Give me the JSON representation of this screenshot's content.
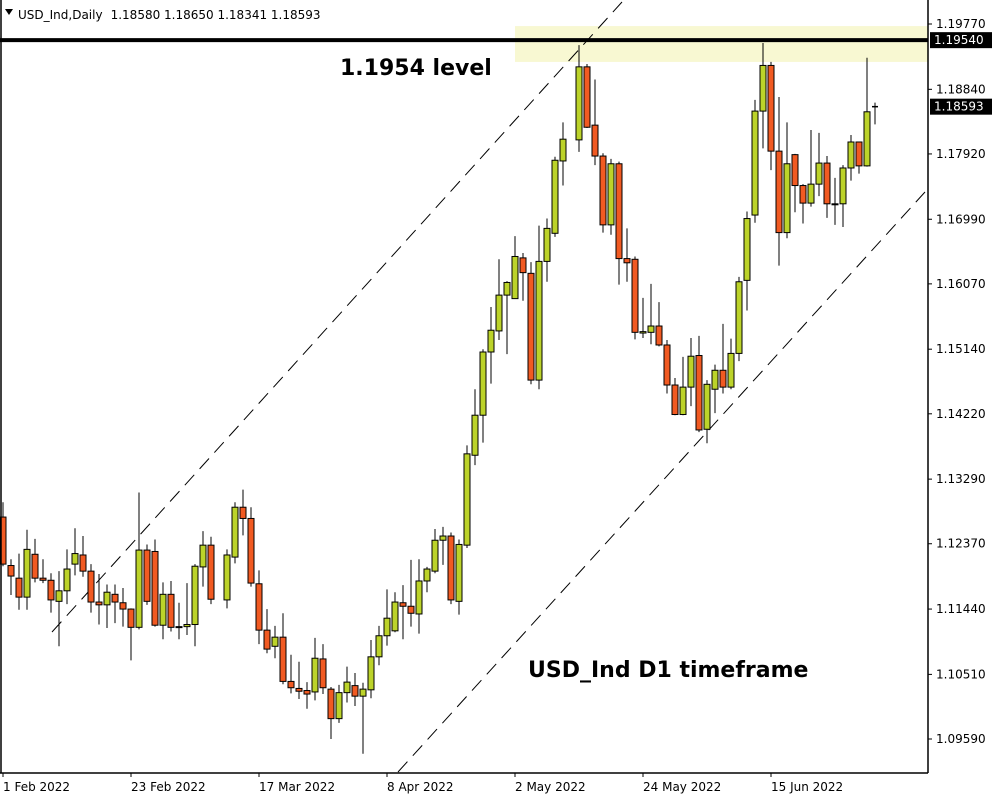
{
  "header": {
    "symbol_timeframe": "USD_Ind,Daily",
    "ohlc": "1.18580 1.18650 1.18341 1.18593",
    "icon": "triangle-down-icon"
  },
  "colors": {
    "bull": "#bcd32a",
    "bear": "#f15a22",
    "zone": "#f8f8d2",
    "background": "#ffffff"
  },
  "chart_data": {
    "type": "candlestick",
    "title": "USD_Ind,Daily",
    "ylim": [
      1.0959,
      1.1977
    ],
    "y_ticks": [
      "1.19770",
      "1.18840",
      "1.17920",
      "1.16990",
      "1.16070",
      "1.15140",
      "1.14220",
      "1.13290",
      "1.12370",
      "1.11440",
      "1.10510",
      "1.09590"
    ],
    "x_ticks": [
      "1 Feb 2022",
      "23 Feb 2022",
      "17 Mar 2022",
      "8 Apr 2022",
      "2 May 2022",
      "24 May 2022",
      "15 Jun 2022"
    ],
    "price_labels": {
      "level": "1.19540",
      "current": "1.18593"
    },
    "level_value": 1.1954,
    "zone": [
      1.1923,
      1.1974
    ],
    "annotations": {
      "level_text": "1.1954 level",
      "timeframe_text": "USD_Ind D1 timeframe"
    },
    "channel": "ascending dashed channel",
    "ohlc": [
      [
        1.1275,
        1.1296,
        1.1205,
        1.1208
      ],
      [
        1.1206,
        1.1215,
        1.1164,
        1.1191
      ],
      [
        1.1188,
        1.1223,
        1.1143,
        1.1161
      ],
      [
        1.1161,
        1.1257,
        1.1143,
        1.1229
      ],
      [
        1.1222,
        1.1244,
        1.1182,
        1.1188
      ],
      [
        1.1188,
        1.1215,
        1.1181,
        1.1185
      ],
      [
        1.1185,
        1.1195,
        1.1139,
        1.1157
      ],
      [
        1.1155,
        1.1198,
        1.1091,
        1.117
      ],
      [
        1.117,
        1.1229,
        1.1151,
        1.1201
      ],
      [
        1.1208,
        1.1259,
        1.1192,
        1.1223
      ],
      [
        1.1221,
        1.1248,
        1.119,
        1.1198
      ],
      [
        1.1198,
        1.1208,
        1.1139,
        1.1154
      ],
      [
        1.1154,
        1.1194,
        1.1122,
        1.115
      ],
      [
        1.115,
        1.1179,
        1.1117,
        1.1168
      ],
      [
        1.1165,
        1.1179,
        1.1124,
        1.1154
      ],
      [
        1.1153,
        1.1174,
        1.1119,
        1.1144
      ],
      [
        1.1144,
        1.1145,
        1.1071,
        1.1118
      ],
      [
        1.1118,
        1.131,
        1.1115,
        1.1228
      ],
      [
        1.1228,
        1.1236,
        1.115,
        1.1155
      ],
      [
        1.1226,
        1.1243,
        1.1119,
        1.1121
      ],
      [
        1.1121,
        1.1182,
        1.1101,
        1.1165
      ],
      [
        1.1165,
        1.1184,
        1.1112,
        1.1118
      ],
      [
        1.1119,
        1.1153,
        1.1101,
        1.1118
      ],
      [
        1.1119,
        1.1181,
        1.1107,
        1.1122
      ],
      [
        1.1122,
        1.1208,
        1.1091,
        1.1205
      ],
      [
        1.1204,
        1.1255,
        1.1176,
        1.1235
      ],
      [
        1.1235,
        1.1247,
        1.1151,
        1.1158
      ],
      [
        1.1157,
        1.1229,
        1.1145,
        1.1221
      ],
      [
        1.1218,
        1.1296,
        1.1209,
        1.1289
      ],
      [
        1.1289,
        1.1314,
        1.1249,
        1.1273
      ],
      [
        1.1273,
        1.1289,
        1.1176,
        1.1181
      ],
      [
        1.118,
        1.1199,
        1.1094,
        1.1114
      ],
      [
        1.1114,
        1.1144,
        1.1081,
        1.1087
      ],
      [
        1.1091,
        1.112,
        1.1074,
        1.1104
      ],
      [
        1.1104,
        1.1138,
        1.1037,
        1.1041
      ],
      [
        1.1041,
        1.1079,
        1.1024,
        1.1032
      ],
      [
        1.1031,
        1.1069,
        1.1016,
        1.1027
      ],
      [
        1.1028,
        1.104,
        1.1002,
        1.1023
      ],
      [
        1.1026,
        1.1103,
        1.1014,
        1.1074
      ],
      [
        1.1073,
        1.1094,
        1.1023,
        1.1032
      ],
      [
        1.103,
        1.1033,
        1.0959,
        1.0988
      ],
      [
        1.0988,
        1.1036,
        1.0982,
        1.1025
      ],
      [
        1.1025,
        1.1062,
        1.1011,
        1.104
      ],
      [
        1.1035,
        1.1053,
        1.1006,
        1.102
      ],
      [
        1.102,
        1.1039,
        1.0938,
        1.103
      ],
      [
        1.1029,
        1.11,
        1.1017,
        1.1076
      ],
      [
        1.1076,
        1.112,
        1.1064,
        1.1106
      ],
      [
        1.1106,
        1.1172,
        1.1092,
        1.1131
      ],
      [
        1.1113,
        1.1168,
        1.1111,
        1.1154
      ],
      [
        1.1153,
        1.1178,
        1.1101,
        1.1148
      ],
      [
        1.1148,
        1.1214,
        1.1119,
        1.1138
      ],
      [
        1.1137,
        1.1215,
        1.1109,
        1.1184
      ],
      [
        1.1184,
        1.1204,
        1.1168,
        1.1201
      ],
      [
        1.1198,
        1.1258,
        1.1195,
        1.1242
      ],
      [
        1.1242,
        1.1261,
        1.1207,
        1.1248
      ],
      [
        1.1248,
        1.1253,
        1.1151,
        1.1157
      ],
      [
        1.1155,
        1.1243,
        1.1136,
        1.1236
      ],
      [
        1.1235,
        1.1377,
        1.1231,
        1.1365
      ],
      [
        1.1363,
        1.1457,
        1.1349,
        1.142
      ],
      [
        1.142,
        1.1514,
        1.1381,
        1.151
      ],
      [
        1.151,
        1.1574,
        1.1465,
        1.1541
      ],
      [
        1.154,
        1.1642,
        1.1527,
        1.1591
      ],
      [
        1.1591,
        1.1611,
        1.1507,
        1.1609
      ],
      [
        1.1586,
        1.1675,
        1.1586,
        1.1646
      ],
      [
        1.1644,
        1.1651,
        1.1583,
        1.1623
      ],
      [
        1.1622,
        1.1638,
        1.1464,
        1.147
      ],
      [
        1.147,
        1.169,
        1.1457,
        1.1639
      ],
      [
        1.1639,
        1.17,
        1.161,
        1.1686
      ],
      [
        1.1679,
        1.1788,
        1.1674,
        1.1783
      ],
      [
        1.1782,
        1.1837,
        1.1747,
        1.1813
      ],
      [
        1.1812,
        1.1947,
        1.1795,
        1.1916
      ],
      [
        1.1916,
        1.192,
        1.1829,
        1.183
      ],
      [
        1.1833,
        1.1898,
        1.1776,
        1.1789
      ],
      [
        1.1789,
        1.1793,
        1.168,
        1.1691
      ],
      [
        1.1691,
        1.1785,
        1.1677,
        1.1778
      ],
      [
        1.1778,
        1.1781,
        1.1606,
        1.1643
      ],
      [
        1.1643,
        1.1686,
        1.161,
        1.1637
      ],
      [
        1.1642,
        1.1646,
        1.1528,
        1.1538
      ],
      [
        1.1537,
        1.1587,
        1.153,
        1.1539
      ],
      [
        1.1538,
        1.1607,
        1.1521,
        1.1547
      ],
      [
        1.1547,
        1.1581,
        1.1518,
        1.152
      ],
      [
        1.152,
        1.1527,
        1.1451,
        1.1463
      ],
      [
        1.1463,
        1.1473,
        1.142,
        1.1421
      ],
      [
        1.1421,
        1.1503,
        1.142,
        1.146
      ],
      [
        1.146,
        1.153,
        1.1433,
        1.1504
      ],
      [
        1.1505,
        1.1533,
        1.1396,
        1.1399
      ],
      [
        1.14,
        1.147,
        1.138,
        1.1464
      ],
      [
        1.1457,
        1.1492,
        1.1423,
        1.1484
      ],
      [
        1.1484,
        1.155,
        1.1451,
        1.146
      ],
      [
        1.146,
        1.1529,
        1.1457,
        1.1508
      ],
      [
        1.1508,
        1.1617,
        1.1497,
        1.161
      ],
      [
        1.1612,
        1.171,
        1.1569,
        1.17
      ],
      [
        1.1705,
        1.1869,
        1.1694,
        1.1853
      ],
      [
        1.1853,
        1.195,
        1.18,
        1.1918
      ],
      [
        1.1918,
        1.1923,
        1.1769,
        1.1796
      ],
      [
        1.1796,
        1.1873,
        1.1633,
        1.168
      ],
      [
        1.168,
        1.1837,
        1.1672,
        1.1778
      ],
      [
        1.1791,
        1.1792,
        1.1709,
        1.1747
      ],
      [
        1.1747,
        1.1749,
        1.1693,
        1.1722
      ],
      [
        1.1722,
        1.1826,
        1.1717,
        1.1749
      ],
      [
        1.1749,
        1.1822,
        1.1732,
        1.1779
      ],
      [
        1.1779,
        1.1789,
        1.1701,
        1.1721
      ],
      [
        1.1721,
        1.1758,
        1.1691,
        1.172
      ],
      [
        1.1721,
        1.1776,
        1.1688,
        1.1772
      ],
      [
        1.1772,
        1.1819,
        1.1754,
        1.1809
      ],
      [
        1.1809,
        1.1809,
        1.1764,
        1.1775
      ],
      [
        1.1775,
        1.1929,
        1.1774,
        1.1852
      ],
      [
        1.1858,
        1.1865,
        1.1834,
        1.18593
      ]
    ]
  }
}
